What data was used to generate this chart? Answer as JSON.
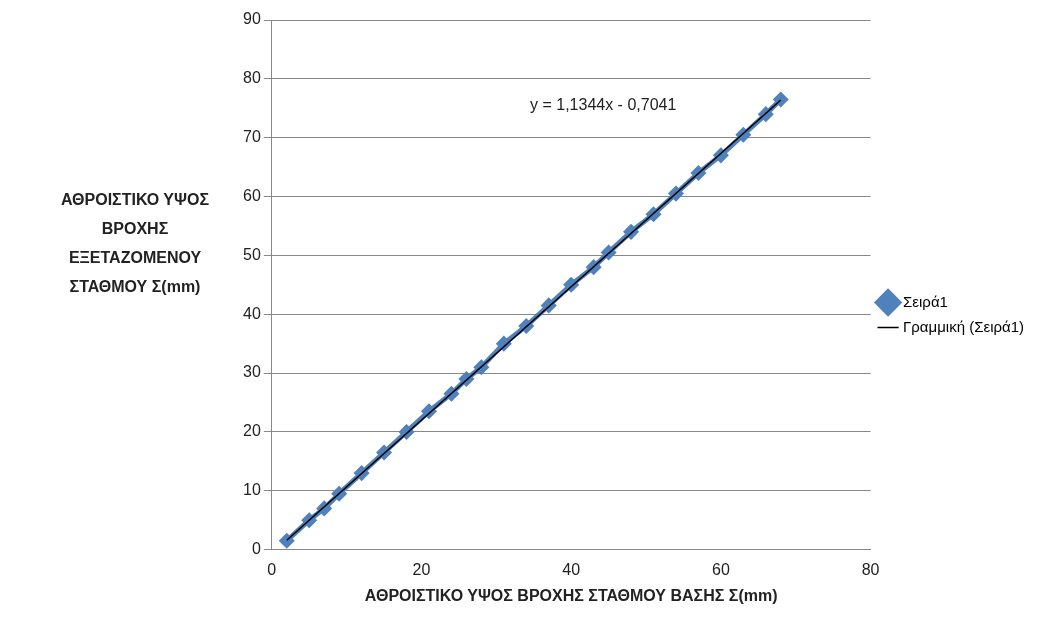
{
  "chart_data": {
    "type": "line",
    "xlabel": "ΑΘΡΟΙΣΤΙΚΟ ΥΨΟΣ ΒΡΟΧΗΣ ΣΤΑΘΜΟΥ ΒΑΣΗΣ Σ(mm)",
    "ylabel": "ΑΘΡΟΙΣΤΙΚΟ ΥΨΟΣ ΒΡΟΧΗΣ ΕΞΕΤΑΖΟΜΕΝΟΥ ΣΤΑΘΜΟΥ Σ(mm)",
    "xlim": [
      0,
      80
    ],
    "xticks": [
      0,
      20,
      40,
      60,
      80
    ],
    "ylim": [
      0,
      90
    ],
    "yticks": [
      0,
      10,
      20,
      30,
      40,
      50,
      60,
      70,
      80,
      90
    ],
    "grid": "y",
    "legend": "right",
    "marker": "diamond",
    "annotations": [
      "y = 1,1344x - 0,7041"
    ],
    "series": [
      {
        "name": "Σειρά1",
        "color": "#4f81bd",
        "x": [
          2,
          5,
          7,
          9,
          12,
          15,
          18,
          21,
          24,
          26,
          28,
          31,
          34,
          37,
          40,
          43,
          45,
          48,
          51,
          54,
          57,
          60,
          63,
          66,
          68
        ],
        "values": [
          1.5,
          5,
          7,
          9.5,
          13,
          16.5,
          20,
          23.5,
          26.5,
          29,
          31,
          35,
          38,
          41.5,
          45,
          48,
          50.5,
          54,
          57,
          60.5,
          64,
          67,
          70.5,
          74,
          76.5
        ]
      },
      {
        "name": "Γραμμική (Σειρά1)",
        "color": "#000000",
        "type": "line",
        "marker": "none",
        "x": [
          2,
          68
        ],
        "values": [
          1.6,
          76.4
        ]
      }
    ]
  }
}
